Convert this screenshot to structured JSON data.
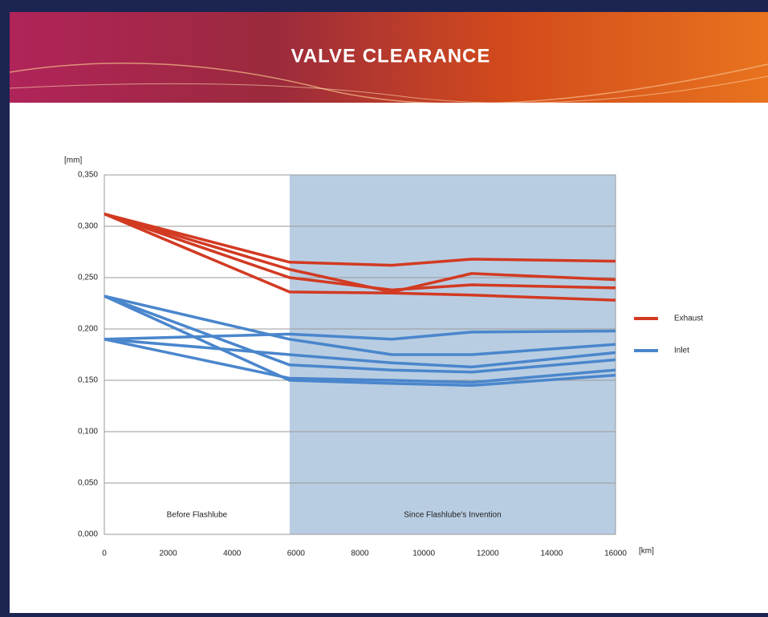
{
  "chart_data": {
    "type": "line",
    "title": "VALVE CLEARANCE",
    "y_label": "[mm]",
    "x_label": "[km]",
    "xlim": [
      0,
      16000
    ],
    "xticks": [
      0,
      2000,
      4000,
      6000,
      8000,
      10000,
      12000,
      14000,
      16000
    ],
    "ylim": [
      0,
      0.35
    ],
    "yticks": [
      {
        "value": 0,
        "label": "0,000"
      },
      {
        "value": 0.05,
        "label": "0,050"
      },
      {
        "value": 0.1,
        "label": "0,100"
      },
      {
        "value": 0.15,
        "label": "0,150"
      },
      {
        "value": 0.2,
        "label": "0,200"
      },
      {
        "value": 0.25,
        "label": "0,250"
      },
      {
        "value": 0.3,
        "label": "0,300"
      },
      {
        "value": 0.35,
        "label": "0,350"
      }
    ],
    "grid": true,
    "regions": [
      {
        "label": "Before Flashlube",
        "from": 0,
        "to": 5800,
        "color": "#ffffff"
      },
      {
        "label": "Since Flashlube's Invention",
        "from": 5800,
        "to": 16000,
        "color": "#b9cde2"
      }
    ],
    "series": [
      {
        "name": "Exhaust",
        "color": "#d23a22",
        "x": [
          0,
          5800,
          9000,
          11500,
          16000
        ],
        "lines": [
          {
            "values": [
              0.312,
              0.265,
              0.262,
              0.268,
              0.266
            ]
          },
          {
            "values": [
              0.312,
              0.258,
              0.236,
              0.254,
              0.248
            ]
          },
          {
            "values": [
              0.312,
              0.25,
              0.238,
              0.243,
              0.24
            ]
          },
          {
            "values": [
              0.312,
              0.236,
              0.235,
              0.233,
              0.228
            ]
          }
        ]
      },
      {
        "name": "Inlet",
        "color": "#4a86cc",
        "x": [
          0,
          5800,
          9000,
          11500,
          16000
        ],
        "lines": [
          {
            "values": [
              0.19,
              0.195,
              0.19,
              0.197,
              0.198
            ]
          },
          {
            "values": [
              0.232,
              0.19,
              0.175,
              0.175,
              0.185
            ]
          },
          {
            "values": [
              0.19,
              0.175,
              0.167,
              0.163,
              0.177
            ]
          },
          {
            "values": [
              0.232,
              0.165,
              0.16,
              0.158,
              0.17
            ]
          },
          {
            "values": [
              0.19,
              0.152,
              0.15,
              0.148,
              0.16
            ]
          },
          {
            "values": [
              0.232,
              0.15,
              0.147,
              0.145,
              0.155
            ]
          }
        ]
      }
    ],
    "legend": "right"
  }
}
